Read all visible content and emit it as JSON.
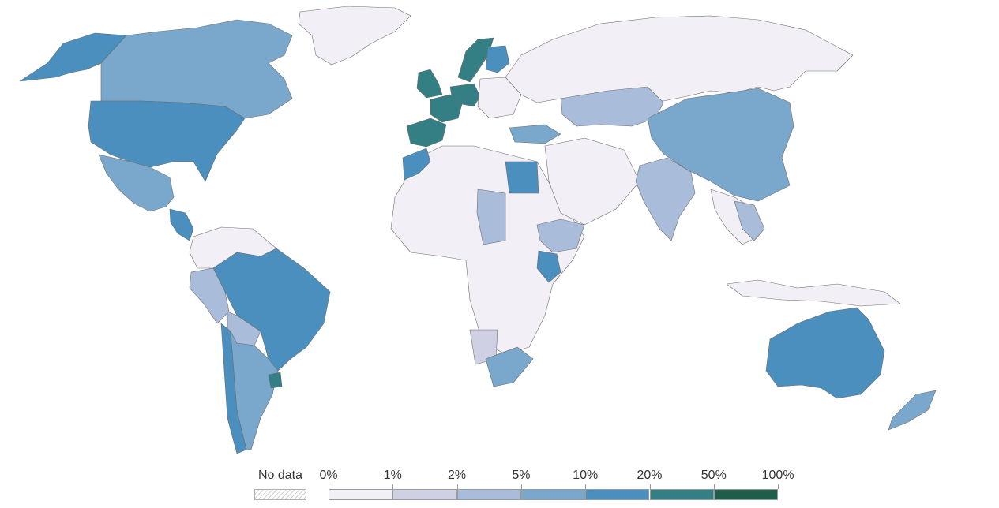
{
  "legend": {
    "no_data_label": "No data",
    "bins": [
      {
        "label": "0%",
        "color": "#f3eff7"
      },
      {
        "label": "1%",
        "color": "#cfd0e4"
      },
      {
        "label": "2%",
        "color": "#a9bcda"
      },
      {
        "label": "5%",
        "color": "#79a8cc"
      },
      {
        "label": "10%",
        "color": "#4a8fbd"
      },
      {
        "label": "20%",
        "color": "#337f84"
      },
      {
        "label": "50%",
        "color": "#1f5c4a"
      }
    ],
    "end_label": "100%"
  },
  "regions": [
    {
      "name": "Russia",
      "color": "#f3eff7"
    },
    {
      "name": "Greenland",
      "color": "#f3eff7"
    },
    {
      "name": "Africa (most countries)",
      "color": "#f3eff7"
    },
    {
      "name": "Middle East",
      "color": "#f3eff7"
    },
    {
      "name": "Southeast Asia",
      "color": "#f3eff7"
    },
    {
      "name": "Northern South America",
      "color": "#f3eff7"
    },
    {
      "name": "Alaska",
      "color": "#4a8fbd"
    },
    {
      "name": "Canada",
      "color": "#79a8cc"
    },
    {
      "name": "United States",
      "color": "#4a8fbd"
    },
    {
      "name": "Mexico",
      "color": "#79a8cc"
    },
    {
      "name": "Central America",
      "color": "#4a8fbd"
    },
    {
      "name": "Brazil",
      "color": "#4a8fbd"
    },
    {
      "name": "Peru",
      "color": "#a9bcda"
    },
    {
      "name": "Bolivia",
      "color": "#a9bcda"
    },
    {
      "name": "Chile",
      "color": "#4a8fbd"
    },
    {
      "name": "Argentina",
      "color": "#79a8cc"
    },
    {
      "name": "Uruguay",
      "color": "#337f84"
    },
    {
      "name": "Iberia",
      "color": "#337f84"
    },
    {
      "name": "United Kingdom",
      "color": "#337f84"
    },
    {
      "name": "Germany",
      "color": "#337f84"
    },
    {
      "name": "Sweden",
      "color": "#337f84"
    },
    {
      "name": "Finland",
      "color": "#4a8fbd"
    },
    {
      "name": "France",
      "color": "#79a8cc"
    },
    {
      "name": "Turkey",
      "color": "#4a8fbd"
    },
    {
      "name": "Morocco",
      "color": "#4a8fbd"
    },
    {
      "name": "Egypt",
      "color": "#a9bcda"
    },
    {
      "name": "Kenya",
      "color": "#4a8fbd"
    },
    {
      "name": "Ethiopia",
      "color": "#a9bcda"
    },
    {
      "name": "Sudan",
      "color": "#a9bcda"
    },
    {
      "name": "South Africa",
      "color": "#79a8cc"
    },
    {
      "name": "Namibia",
      "color": "#cfd0e4"
    },
    {
      "name": "Kazakhstan",
      "color": "#a9bcda"
    },
    {
      "name": "China",
      "color": "#79a8cc"
    },
    {
      "name": "India",
      "color": "#a9bcda"
    },
    {
      "name": "Vietnam region",
      "color": "#a9bcda"
    },
    {
      "name": "Australia",
      "color": "#4a8fbd"
    },
    {
      "name": "New Zealand",
      "color": "#79a8cc"
    }
  ]
}
